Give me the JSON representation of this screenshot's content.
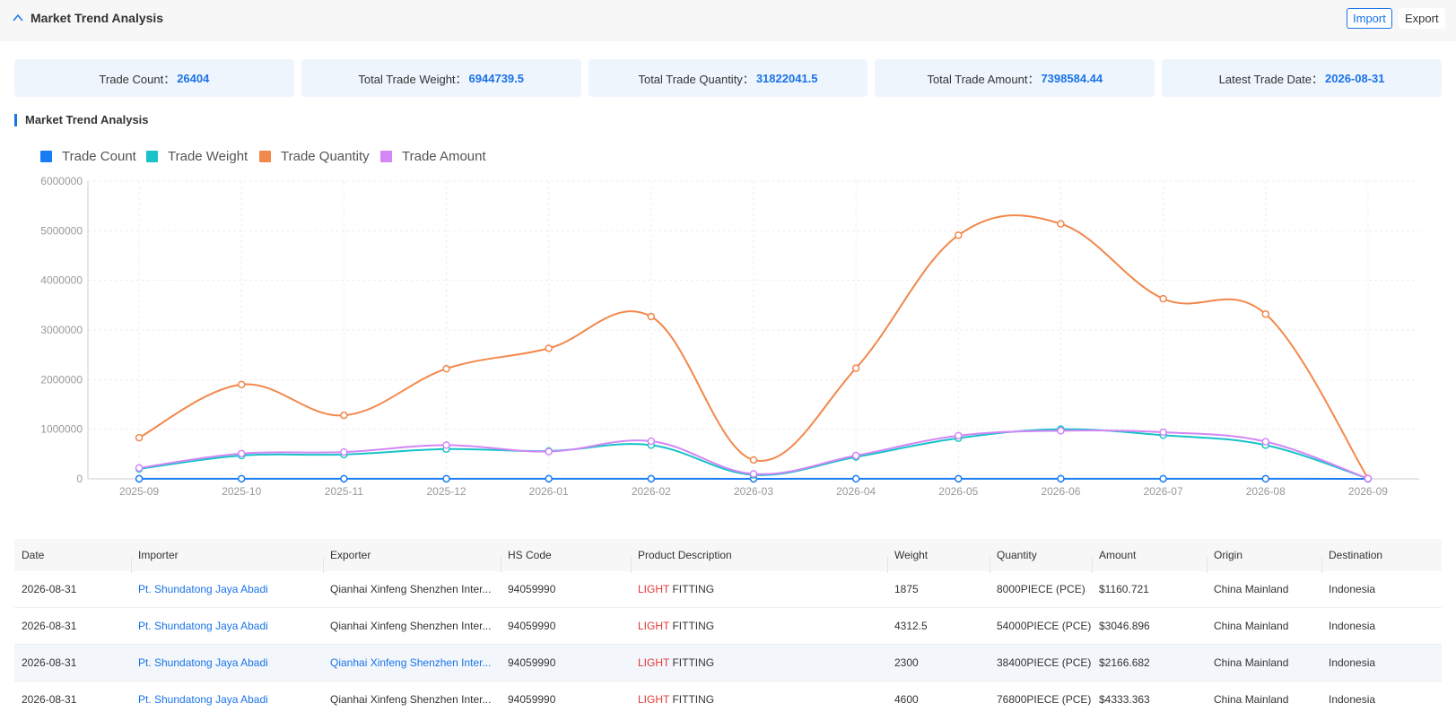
{
  "header": {
    "title": "Market Trend Analysis",
    "import_label": "Import",
    "export_label": "Export"
  },
  "stats": [
    {
      "label": "Trade Count：",
      "value": "26404"
    },
    {
      "label": "Total Trade Weight：",
      "value": "6944739.5"
    },
    {
      "label": "Total Trade Quantity：",
      "value": "31822041.5"
    },
    {
      "label": "Total Trade Amount：",
      "value": "7398584.44"
    },
    {
      "label": "Latest Trade Date：",
      "value": "2026-08-31"
    }
  ],
  "section_title": "Market Trend Analysis",
  "chart_data": {
    "type": "line",
    "categories": [
      "2025-09",
      "2025-10",
      "2025-11",
      "2025-12",
      "2026-01",
      "2026-02",
      "2026-03",
      "2026-04",
      "2026-05",
      "2026-06",
      "2026-07",
      "2026-08",
      "2026-09"
    ],
    "ylim": [
      0,
      6000000
    ],
    "yticks": [
      "0",
      "1000000",
      "2000000",
      "3000000",
      "4000000",
      "5000000",
      "6000000"
    ],
    "grid": true,
    "legend_position": "top-left",
    "series": [
      {
        "name": "Trade Count",
        "color": "#1a7cf5",
        "values": [
          1200,
          2500,
          2600,
          2700,
          2400,
          2600,
          600,
          2300,
          2700,
          2800,
          2500,
          2300,
          5
        ]
      },
      {
        "name": "Trade Weight",
        "color": "#17c3c9",
        "values": [
          200000,
          470000,
          490000,
          600000,
          560000,
          680000,
          80000,
          440000,
          820000,
          1000000,
          880000,
          680000,
          5000
        ]
      },
      {
        "name": "Trade Quantity",
        "color": "#f2884b",
        "values": [
          830000,
          1900000,
          1280000,
          2220000,
          2630000,
          3270000,
          380000,
          2230000,
          4910000,
          5140000,
          3630000,
          3320000,
          10000
        ]
      },
      {
        "name": "Trade Amount",
        "color": "#d386f6",
        "values": [
          220000,
          510000,
          540000,
          680000,
          550000,
          760000,
          100000,
          470000,
          870000,
          970000,
          940000,
          750000,
          6000
        ]
      }
    ]
  },
  "table": {
    "headers": [
      "Date",
      "Importer",
      "Exporter",
      "HS Code",
      "Product Description",
      "Weight",
      "Quantity",
      "Amount",
      "Origin",
      "Destination"
    ],
    "rows": [
      {
        "date": "2026-08-31",
        "importer": "Pt. Shundatong Jaya Abadi",
        "exporter": "Qianhai Xinfeng Shenzhen Inter...",
        "hs": "94059990",
        "prod_kw": "LIGHT",
        "prod_rest": " FITTING",
        "weight": "1875",
        "quantity": "8000PIECE (PCE)",
        "amount": "$1160.721",
        "origin": "China Mainland",
        "destination": "Indonesia"
      },
      {
        "date": "2026-08-31",
        "importer": "Pt. Shundatong Jaya Abadi",
        "exporter": "Qianhai Xinfeng Shenzhen Inter...",
        "hs": "94059990",
        "prod_kw": "LIGHT",
        "prod_rest": " FITTING",
        "weight": "4312.5",
        "quantity": "54000PIECE (PCE)",
        "amount": "$3046.896",
        "origin": "China Mainland",
        "destination": "Indonesia"
      },
      {
        "date": "2026-08-31",
        "importer": "Pt. Shundatong Jaya Abadi",
        "exporter": "Qianhai Xinfeng Shenzhen Inter...",
        "hs": "94059990",
        "prod_kw": "LIGHT",
        "prod_rest": " FITTING",
        "weight": "2300",
        "quantity": "38400PIECE (PCE)",
        "amount": "$2166.682",
        "origin": "China Mainland",
        "destination": "Indonesia"
      },
      {
        "date": "2026-08-31",
        "importer": "Pt. Shundatong Jaya Abadi",
        "exporter": "Qianhai Xinfeng Shenzhen Inter...",
        "hs": "94059990",
        "prod_kw": "LIGHT",
        "prod_rest": " FITTING",
        "weight": "4600",
        "quantity": "76800PIECE (PCE)",
        "amount": "$4333.363",
        "origin": "China Mainland",
        "destination": "Indonesia"
      }
    ]
  }
}
